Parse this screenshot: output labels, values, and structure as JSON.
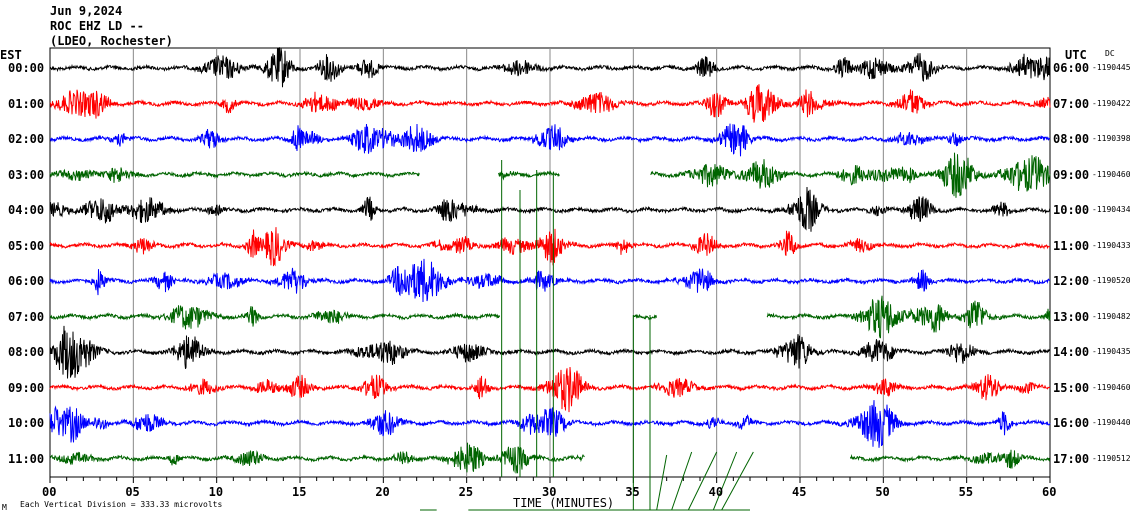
{
  "header": {
    "date": "Jun 9,2024",
    "station": "ROC EHZ LD --",
    "network": "(LDEO, Rochester)"
  },
  "left_axis_title": "EST",
  "right_axis_title": "UTC",
  "dc_title": "DC",
  "footer": {
    "scale_note": "Each Vertical Division =  333.33 microvolts",
    "corner_mark": "M"
  },
  "chart_data": {
    "type": "line",
    "title": "",
    "xlabel": "TIME (MINUTES)",
    "xlim": [
      0,
      60
    ],
    "x_ticks": [
      "00",
      "05",
      "10",
      "15",
      "20",
      "25",
      "30",
      "35",
      "40",
      "45",
      "50",
      "55",
      "60"
    ],
    "grid": "vertical every 5 minutes",
    "colors": [
      "#000000",
      "#ff0000",
      "#0000ff",
      "#006400"
    ],
    "traces": [
      {
        "est": "00:00",
        "utc": "06:00",
        "dc": "-1190445",
        "color": "#000000",
        "gaps": []
      },
      {
        "est": "01:00",
        "utc": "07:00",
        "dc": "-1190422",
        "color": "#ff0000",
        "gaps": []
      },
      {
        "est": "02:00",
        "utc": "08:00",
        "dc": "-1190398",
        "color": "#0000ff",
        "gaps": []
      },
      {
        "est": "03:00",
        "utc": "09:00",
        "dc": "-1190460",
        "color": "#006400",
        "gaps": [
          [
            22.2,
            26.9
          ],
          [
            30.6,
            36.0
          ]
        ]
      },
      {
        "est": "04:00",
        "utc": "10:00",
        "dc": "-1190434",
        "color": "#000000",
        "gaps": []
      },
      {
        "est": "05:00",
        "utc": "11:00",
        "dc": "-1190433",
        "color": "#ff0000",
        "gaps": []
      },
      {
        "est": "06:00",
        "utc": "12:00",
        "dc": "-1190520",
        "color": "#0000ff",
        "gaps": []
      },
      {
        "est": "07:00",
        "utc": "13:00",
        "dc": "-1190482",
        "color": "#006400",
        "gaps": [
          [
            27.0,
            35.0
          ],
          [
            36.4,
            43.0
          ]
        ]
      },
      {
        "est": "08:00",
        "utc": "14:00",
        "dc": "-1190435",
        "color": "#000000",
        "gaps": []
      },
      {
        "est": "09:00",
        "utc": "15:00",
        "dc": "-1190460",
        "color": "#ff0000",
        "gaps": []
      },
      {
        "est": "10:00",
        "utc": "16:00",
        "dc": "-1190440",
        "color": "#0000ff",
        "gaps": []
      },
      {
        "est": "11:00",
        "utc": "17:00",
        "dc": "-1190512",
        "color": "#006400",
        "gaps": [
          [
            32.1,
            48.0
          ]
        ]
      }
    ]
  }
}
